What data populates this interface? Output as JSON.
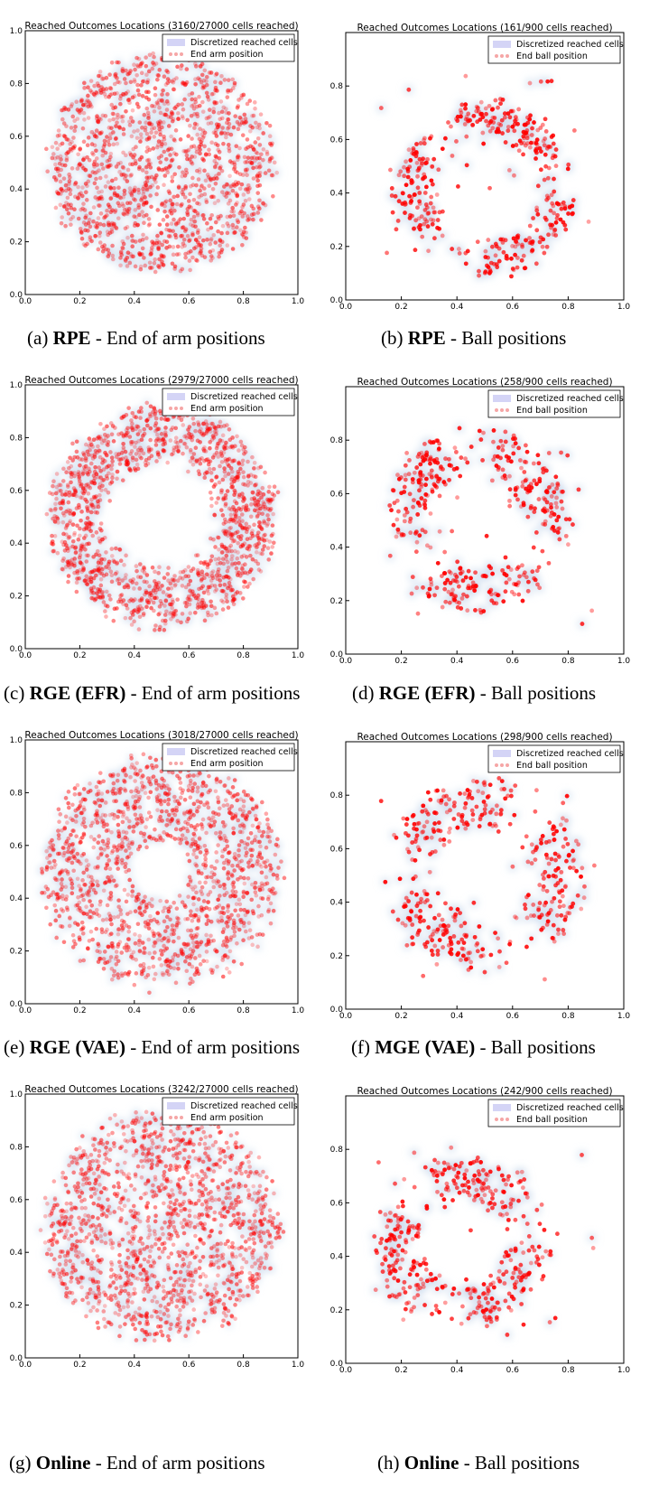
{
  "colors": {
    "cell": "#c9d8ec",
    "point": "#ff0000",
    "legend_cell": "#d4d4f6",
    "legend_point": "#f6a6a6"
  },
  "chart_data": [
    {
      "id": "a",
      "type": "scatter",
      "title": "Reached Outcomes Locations (3160/27000 cells reached)",
      "legend": [
        "Discretized reached cells",
        "End arm position"
      ],
      "legend_placement": "top-right",
      "xlim": [
        0.0,
        1.0
      ],
      "ylim": [
        0.0,
        1.0
      ],
      "xticks": [
        "0.0",
        "0.2",
        "0.4",
        "0.6",
        "0.8",
        "1.0"
      ],
      "yticks": [
        "0.0",
        "0.2",
        "0.4",
        "0.6",
        "0.8",
        "1.0"
      ],
      "distribution": {
        "shape": "disk",
        "center": [
          0.5,
          0.5
        ],
        "inner_radius": 0.0,
        "outer_radius": 0.42
      },
      "caption": {
        "label": "(a)",
        "method": "RPE",
        "rest": "- End of arm positions"
      }
    },
    {
      "id": "b",
      "type": "scatter",
      "title": "Reached Outcomes Locations (161/900 cells reached)",
      "legend": [
        "Discretized reached cells",
        "End ball position"
      ],
      "legend_placement": "top-right",
      "xlim": [
        0.0,
        1.0
      ],
      "ylim": [
        0.0,
        1.0
      ],
      "xticks": [
        "0.0",
        "0.2",
        "0.4",
        "0.6",
        "0.8",
        "1.0"
      ],
      "yticks": [
        "0.0",
        "0.2",
        "0.4",
        "0.6",
        "0.8"
      ],
      "distribution": {
        "shape": "ring",
        "center": [
          0.5,
          0.42
        ],
        "inner_radius": 0.2,
        "outer_radius": 0.33
      },
      "caption": {
        "label": "(b)",
        "method": "RPE",
        "rest": "- Ball positions"
      }
    },
    {
      "id": "c",
      "type": "scatter",
      "title": "Reached Outcomes Locations (2979/27000 cells reached)",
      "legend": [
        "Discretized reached cells",
        "End arm position"
      ],
      "legend_placement": "top-right",
      "xlim": [
        0.0,
        1.0
      ],
      "ylim": [
        0.0,
        1.0
      ],
      "xticks": [
        "0.0",
        "0.2",
        "0.4",
        "0.6",
        "0.8",
        "1.0"
      ],
      "yticks": [
        "0.0",
        "0.2",
        "0.4",
        "0.6",
        "0.8",
        "1.0"
      ],
      "distribution": {
        "shape": "ring",
        "center": [
          0.5,
          0.5
        ],
        "inner_radius": 0.22,
        "outer_radius": 0.42
      },
      "caption": {
        "label": "(c)",
        "method": "RGE (EFR)",
        "rest": "- End of arm positions"
      }
    },
    {
      "id": "d",
      "type": "scatter",
      "title": "Reached Outcomes Locations (258/900 cells reached)",
      "legend": [
        "Discretized reached cells",
        "End ball position"
      ],
      "legend_placement": "top-right",
      "xlim": [
        0.0,
        1.0
      ],
      "ylim": [
        0.0,
        1.0
      ],
      "xticks": [
        "0.0",
        "0.2",
        "0.4",
        "0.6",
        "0.8",
        "1.0"
      ],
      "yticks": [
        "0.0",
        "0.2",
        "0.4",
        "0.6",
        "0.8"
      ],
      "distribution": {
        "shape": "ring",
        "center": [
          0.47,
          0.5
        ],
        "inner_radius": 0.18,
        "outer_radius": 0.34
      },
      "caption": {
        "label": "(d)",
        "method": "RGE (EFR)",
        "rest": "- Ball positions"
      }
    },
    {
      "id": "e",
      "type": "scatter",
      "title": "Reached Outcomes Locations (3018/27000 cells reached)",
      "legend": [
        "Discretized reached cells",
        "End arm position"
      ],
      "legend_placement": "top-right",
      "xlim": [
        0.0,
        1.0
      ],
      "ylim": [
        0.0,
        1.0
      ],
      "xticks": [
        "0.0",
        "0.2",
        "0.4",
        "0.6",
        "0.8",
        "1.0"
      ],
      "yticks": [
        "0.0",
        "0.2",
        "0.4",
        "0.6",
        "0.8",
        "1.0"
      ],
      "distribution": {
        "shape": "ring",
        "center": [
          0.5,
          0.5
        ],
        "inner_radius": 0.12,
        "outer_radius": 0.44
      },
      "caption": {
        "label": "(e)",
        "method": "RGE (VAE)",
        "rest": "- End of arm positions"
      }
    },
    {
      "id": "f",
      "type": "scatter",
      "title": "Reached Outcomes Locations (298/900 cells reached)",
      "legend": [
        "Discretized reached cells",
        "End ball position"
      ],
      "legend_placement": "top-right",
      "xlim": [
        0.0,
        1.0
      ],
      "ylim": [
        0.0,
        1.0
      ],
      "xticks": [
        "0.0",
        "0.2",
        "0.4",
        "0.6",
        "0.8",
        "1.0"
      ],
      "yticks": [
        "0.0",
        "0.2",
        "0.4",
        "0.6",
        "0.8"
      ],
      "distribution": {
        "shape": "ring",
        "center": [
          0.5,
          0.5
        ],
        "inner_radius": 0.18,
        "outer_radius": 0.36
      },
      "caption": {
        "label": "(f)",
        "method": "MGE (VAE)",
        "rest": "- Ball positions"
      }
    },
    {
      "id": "g",
      "type": "scatter",
      "title": "Reached Outcomes Locations (3242/27000 cells reached)",
      "legend": [
        "Discretized reached cells",
        "End arm position"
      ],
      "legend_placement": "top-right",
      "xlim": [
        0.0,
        1.0
      ],
      "ylim": [
        0.0,
        1.0
      ],
      "xticks": [
        "0.0",
        "0.2",
        "0.4",
        "0.6",
        "0.8",
        "1.0"
      ],
      "yticks": [
        "0.0",
        "0.2",
        "0.4",
        "0.6",
        "0.8",
        "1.0"
      ],
      "distribution": {
        "shape": "disk",
        "center": [
          0.5,
          0.5
        ],
        "inner_radius": 0.0,
        "outer_radius": 0.44
      },
      "caption": {
        "label": "(g)",
        "method": "Online",
        "rest": "- End of arm positions"
      }
    },
    {
      "id": "h",
      "type": "scatter",
      "title": "Reached Outcomes Locations (242/900 cells reached)",
      "legend": [
        "Discretized reached cells",
        "End ball position"
      ],
      "legend_placement": "top-right",
      "xlim": [
        0.0,
        1.0
      ],
      "ylim": [
        0.0,
        1.0
      ],
      "xticks": [
        "0.0",
        "0.2",
        "0.4",
        "0.6",
        "0.8",
        "1.0"
      ],
      "yticks": [
        "0.0",
        "0.2",
        "0.4",
        "0.6",
        "0.8"
      ],
      "distribution": {
        "shape": "ring",
        "center": [
          0.42,
          0.45
        ],
        "inner_radius": 0.16,
        "outer_radius": 0.32
      },
      "caption": {
        "label": "(h)",
        "method": "Online",
        "rest": "- Ball positions"
      }
    }
  ]
}
